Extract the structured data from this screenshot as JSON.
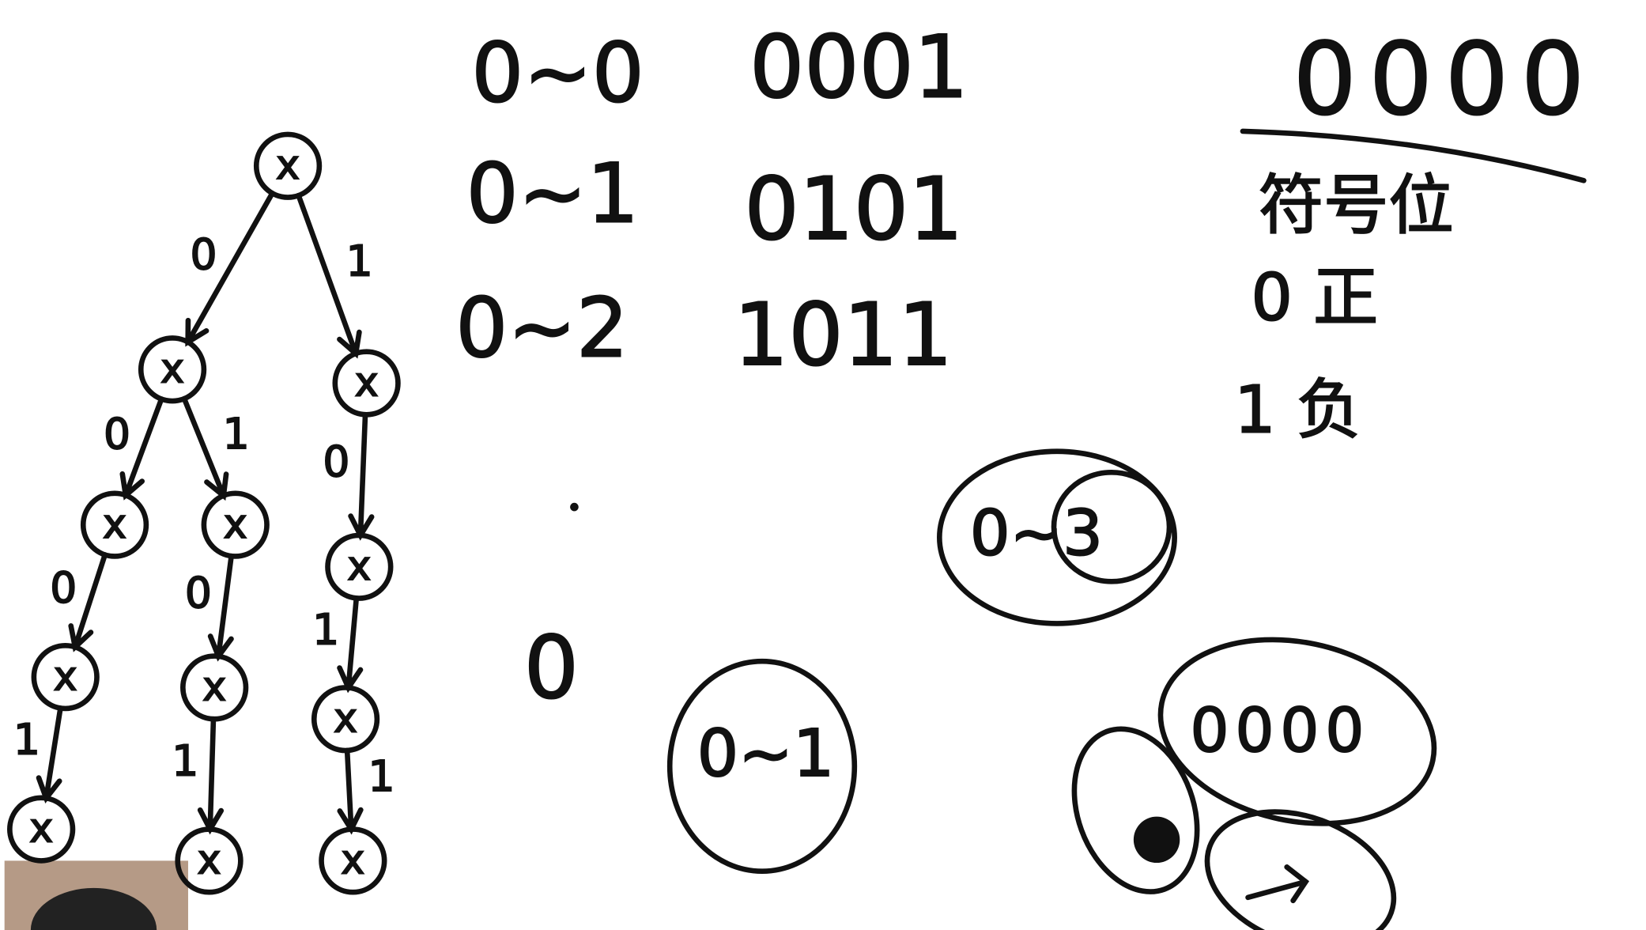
{
  "rows": [
    {
      "range": "0~0",
      "bits": "0001"
    },
    {
      "range": "0~1",
      "bits": "0101"
    },
    {
      "range": "0~2",
      "bits": "1011"
    }
  ],
  "sign_note": {
    "bits": "0000",
    "label": "符号位",
    "positive": "0 正",
    "negative": "1 负"
  },
  "lone_zero": "0",
  "circled": [
    "0~1",
    "0~3"
  ],
  "group": {
    "bits": "0000"
  },
  "tree": {
    "nodes": [
      "x",
      "x",
      "x",
      "x",
      "x",
      "x",
      "x",
      "x",
      "x",
      "x",
      "x",
      "x"
    ],
    "edges": [
      {
        "label": "0"
      },
      {
        "label": "1"
      },
      {
        "label": "0"
      },
      {
        "label": "1"
      },
      {
        "label": "0"
      },
      {
        "label": "0"
      },
      {
        "label": "0"
      },
      {
        "label": "1"
      },
      {
        "label": "1"
      },
      {
        "label": "1"
      },
      {
        "label": "1"
      }
    ]
  }
}
